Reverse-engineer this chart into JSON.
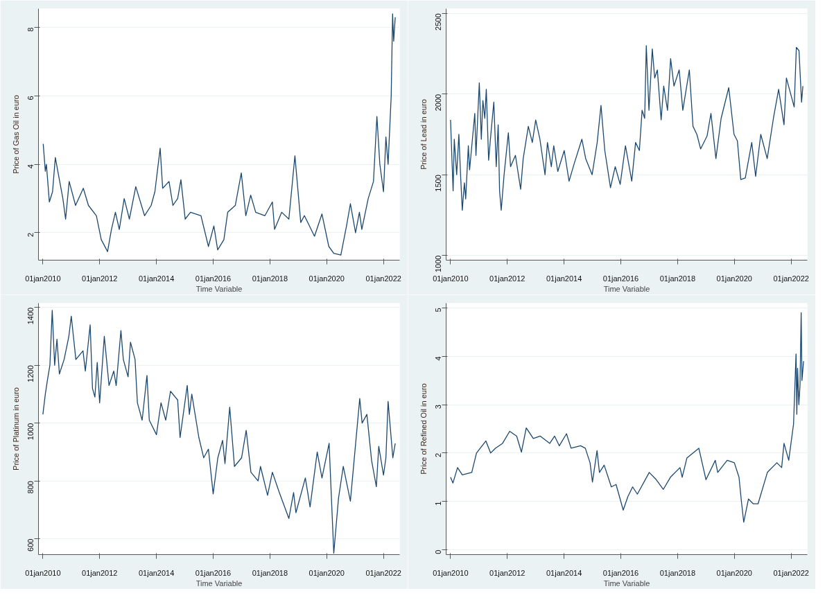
{
  "chart_data": [
    {
      "type": "line",
      "xlabel": "Time Variable",
      "ylabel": "Price of Gas Oil in euro",
      "grid": "y",
      "xlim": [
        "2009-11-05",
        "2022-07-28"
      ],
      "ylim": [
        1.2,
        8.55
      ],
      "yticks": [
        2,
        4,
        6,
        8
      ],
      "xticks": [
        {
          "value": "2010-01-01",
          "label": "01jan2010"
        },
        {
          "value": "2012-01-01",
          "label": "01jan2012"
        },
        {
          "value": "2014-01-01",
          "label": "01jan2014"
        },
        {
          "value": "2016-01-01",
          "label": "01jan2016"
        },
        {
          "value": "2018-01-01",
          "label": "01jan2018"
        },
        {
          "value": "2020-01-01",
          "label": "01jan2020"
        },
        {
          "value": "2022-01-01",
          "label": "01jan2022"
        }
      ],
      "series": [
        {
          "color": "#1a476f",
          "x": [
            "2010-01-05",
            "2010-02-01",
            "2010-02-15",
            "2010-03-25",
            "2010-05-05",
            "2010-06-10",
            "2010-07-28",
            "2010-09-15",
            "2010-10-20",
            "2010-12-05",
            "2011-02-25",
            "2011-06-05",
            "2011-08-10",
            "2011-11-20",
            "2012-01-22",
            "2012-04-12",
            "2012-06-01",
            "2012-07-22",
            "2012-09-10",
            "2012-11-12",
            "2013-01-18",
            "2013-04-10",
            "2013-08-01",
            "2013-10-25",
            "2013-12-12",
            "2014-02-18",
            "2014-03-22",
            "2014-06-12",
            "2014-08-01",
            "2014-10-01",
            "2014-11-12",
            "2015-01-06",
            "2015-03-15",
            "2015-07-28",
            "2015-11-01",
            "2016-01-10",
            "2016-02-28",
            "2016-05-18",
            "2016-07-06",
            "2016-10-12",
            "2016-12-28",
            "2017-02-24",
            "2017-04-28",
            "2017-07-01",
            "2017-10-28",
            "2018-02-01",
            "2018-03-01",
            "2018-06-01",
            "2018-09-01",
            "2018-11-18",
            "2019-02-01",
            "2019-03-20",
            "2019-07-28",
            "2019-11-01",
            "2020-01-28",
            "2020-04-01",
            "2020-07-01",
            "2020-09-12",
            "2020-11-01",
            "2021-01-06",
            "2021-02-25",
            "2021-03-28",
            "2021-06-18",
            "2021-08-25",
            "2021-10-08",
            "2021-11-15",
            "2022-01-01",
            "2022-02-01",
            "2022-03-01",
            "2022-04-10",
            "2022-04-28",
            "2022-05-12",
            "2022-06-01"
          ],
          "values": [
            4.6,
            3.8,
            4.0,
            2.9,
            3.2,
            4.2,
            3.6,
            3.0,
            2.4,
            3.5,
            2.8,
            3.3,
            2.8,
            2.5,
            1.8,
            1.45,
            2.1,
            2.6,
            2.1,
            3.0,
            2.4,
            3.35,
            2.5,
            2.8,
            3.2,
            4.47,
            3.3,
            3.5,
            2.8,
            3.0,
            3.55,
            2.4,
            2.6,
            2.5,
            1.6,
            2.2,
            1.5,
            1.8,
            2.6,
            2.8,
            3.75,
            2.5,
            3.1,
            2.6,
            2.5,
            2.9,
            2.1,
            2.6,
            2.4,
            4.25,
            2.3,
            2.5,
            1.9,
            2.55,
            1.6,
            1.4,
            1.35,
            2.2,
            2.85,
            2.0,
            2.6,
            2.1,
            3.0,
            3.5,
            5.4,
            4.0,
            3.2,
            4.8,
            4.0,
            6.0,
            8.4,
            7.6,
            8.3
          ]
        }
      ]
    },
    {
      "type": "line",
      "xlabel": "Time Variable",
      "ylabel": "Price of Lead in euro",
      "grid": "y",
      "xlim": [
        "2009-11-05",
        "2022-07-28"
      ],
      "ylim": [
        970,
        2530
      ],
      "yticks": [
        1000,
        1500,
        2000,
        2500
      ],
      "xticks": [
        {
          "value": "2010-01-01",
          "label": "01jan2010"
        },
        {
          "value": "2012-01-01",
          "label": "01jan2012"
        },
        {
          "value": "2014-01-01",
          "label": "01jan2014"
        },
        {
          "value": "2016-01-01",
          "label": "01jan2016"
        },
        {
          "value": "2018-01-01",
          "label": "01jan2018"
        },
        {
          "value": "2020-01-01",
          "label": "01jan2020"
        },
        {
          "value": "2022-01-01",
          "label": "01jan2022"
        }
      ],
      "series": [
        {
          "color": "#1a476f",
          "x": [
            "2010-01-01",
            "2010-01-15",
            "2010-02-03",
            "2010-02-18",
            "2010-03-21",
            "2010-04-18",
            "2010-05-10",
            "2010-06-01",
            "2010-06-28",
            "2010-07-15",
            "2010-08-18",
            "2010-09-03",
            "2010-11-09",
            "2010-11-24",
            "2011-01-06",
            "2011-02-01",
            "2011-02-21",
            "2011-03-18",
            "2011-04-06",
            "2011-05-06",
            "2011-06-09",
            "2011-07-12",
            "2011-08-12",
            "2011-09-06",
            "2011-09-24",
            "2011-10-15",
            "2011-11-21",
            "2012-01-15",
            "2012-02-12",
            "2012-04-15",
            "2012-06-21",
            "2012-07-24",
            "2012-09-28",
            "2012-11-18",
            "2013-01-01",
            "2013-02-24",
            "2013-05-01",
            "2013-06-01",
            "2013-07-21",
            "2013-08-21",
            "2013-10-12",
            "2014-01-03",
            "2014-03-06",
            "2014-05-12",
            "2014-08-18",
            "2014-10-06",
            "2014-12-28",
            "2015-03-03",
            "2015-04-21",
            "2015-06-09",
            "2015-08-21",
            "2015-10-21",
            "2015-12-24",
            "2016-03-01",
            "2016-05-21",
            "2016-07-09",
            "2016-08-27",
            "2016-10-01",
            "2016-11-03",
            "2016-11-24",
            "2016-12-28",
            "2017-02-09",
            "2017-03-12",
            "2017-04-15",
            "2017-06-03",
            "2017-07-06",
            "2017-08-24",
            "2017-10-03",
            "2017-11-15",
            "2018-01-21",
            "2018-03-09",
            "2018-06-01",
            "2018-07-18",
            "2018-09-06",
            "2018-10-24",
            "2019-01-15",
            "2019-03-06",
            "2019-05-09",
            "2019-07-15",
            "2019-10-21",
            "2019-12-28",
            "2020-02-09",
            "2020-03-24",
            "2020-05-21",
            "2020-08-12",
            "2020-10-01",
            "2020-12-06",
            "2021-02-27",
            "2021-05-18",
            "2021-07-24",
            "2021-10-01",
            "2021-11-01",
            "2022-02-09",
            "2022-03-09",
            "2022-04-12",
            "2022-05-15",
            "2022-06-01"
          ],
          "values": [
            1840,
            1650,
            1400,
            1720,
            1500,
            1750,
            1500,
            1280,
            1450,
            1350,
            1680,
            1530,
            1880,
            1620,
            2070,
            1720,
            1960,
            1850,
            2030,
            1590,
            1780,
            1950,
            1550,
            1810,
            1400,
            1280,
            1500,
            1760,
            1550,
            1620,
            1410,
            1600,
            1800,
            1700,
            1840,
            1720,
            1500,
            1700,
            1550,
            1680,
            1520,
            1650,
            1460,
            1570,
            1720,
            1600,
            1500,
            1700,
            1930,
            1650,
            1420,
            1550,
            1440,
            1680,
            1460,
            1700,
            1650,
            1900,
            1850,
            2300,
            1900,
            2280,
            2100,
            2150,
            1840,
            2050,
            1900,
            2220,
            2050,
            2150,
            1900,
            2150,
            1800,
            1750,
            1660,
            1740,
            1880,
            1600,
            1850,
            2040,
            1750,
            1710,
            1470,
            1480,
            1700,
            1490,
            1750,
            1600,
            1850,
            2030,
            1810,
            2100,
            1920,
            2290,
            2270,
            1950,
            2050
          ]
        }
      ]
    },
    {
      "type": "line",
      "xlabel": "Time Variable",
      "ylabel": "Price of Platinum in euro",
      "grid": "y",
      "xlim": [
        "2009-11-05",
        "2022-07-28"
      ],
      "ylim": [
        545,
        1415
      ],
      "yticks": [
        600,
        800,
        1000,
        1200,
        1400
      ],
      "xticks": [
        {
          "value": "2010-01-01",
          "label": "01jan2010"
        },
        {
          "value": "2012-01-01",
          "label": "01jan2012"
        },
        {
          "value": "2014-01-01",
          "label": "01jan2014"
        },
        {
          "value": "2016-01-01",
          "label": "01jan2016"
        },
        {
          "value": "2018-01-01",
          "label": "01jan2018"
        },
        {
          "value": "2020-01-01",
          "label": "01jan2020"
        },
        {
          "value": "2022-01-01",
          "label": "01jan2022"
        }
      ],
      "series": [
        {
          "color": "#1a476f",
          "x": [
            "2010-01",
            "2010-02",
            "2010-03",
            "2010-04",
            "2010-05",
            "2010-06",
            "2010-07",
            "2010-08",
            "2010-10",
            "2010-12",
            "2011-01",
            "2011-03",
            "2011-06",
            "2011-07",
            "2011-09",
            "2011-10",
            "2011-11",
            "2011-12",
            "2012-01",
            "2012-03",
            "2012-05",
            "2012-07",
            "2012-08",
            "2012-10",
            "2012-11",
            "2013-01",
            "2013-02",
            "2013-04",
            "2013-05",
            "2013-07",
            "2013-09",
            "2013-10",
            "2014-01",
            "2014-03",
            "2014-05",
            "2014-07",
            "2014-10",
            "2014-11",
            "2015-02",
            "2015-03",
            "2015-04",
            "2015-07",
            "2015-09",
            "2015-11",
            "2016-01",
            "2016-03",
            "2016-05",
            "2016-06",
            "2016-08",
            "2016-10",
            "2017-01",
            "2017-03",
            "2017-05",
            "2017-08",
            "2017-09",
            "2017-12",
            "2018-02",
            "2018-05",
            "2018-09",
            "2018-11",
            "2018-12",
            "2019-04",
            "2019-06",
            "2019-09",
            "2019-11",
            "2020-02",
            "2020-04",
            "2020-06",
            "2020-08",
            "2020-11",
            "2021-03",
            "2021-04",
            "2021-06",
            "2021-08",
            "2021-10",
            "2021-11",
            "2022-01",
            "2022-02",
            "2022-03",
            "2022-05",
            "2022-06"
          ],
          "values": [
            1030,
            1100,
            1150,
            1200,
            1390,
            1200,
            1290,
            1170,
            1220,
            1300,
            1370,
            1220,
            1250,
            1180,
            1340,
            1120,
            1090,
            1210,
            1070,
            1300,
            1130,
            1180,
            1130,
            1320,
            1220,
            1160,
            1280,
            1220,
            1070,
            1010,
            1165,
            1010,
            960,
            1070,
            1010,
            1110,
            1080,
            950,
            1130,
            1030,
            1100,
            950,
            880,
            910,
            755,
            880,
            940,
            860,
            1055,
            850,
            880,
            975,
            830,
            800,
            850,
            750,
            830,
            760,
            670,
            760,
            690,
            810,
            710,
            900,
            810,
            930,
            550,
            740,
            850,
            730,
            1085,
            1000,
            1030,
            870,
            780,
            920,
            820,
            880,
            1075,
            880,
            930
          ]
        }
      ]
    },
    {
      "type": "line",
      "xlabel": "Time Variable",
      "ylabel": "Price of Refined Oil in euro",
      "grid": "y",
      "xlim": [
        "2009-11-05",
        "2022-07-28"
      ],
      "ylim": [
        -0.1,
        5.1
      ],
      "yticks": [
        0,
        1,
        2,
        3,
        4,
        5
      ],
      "xticks": [
        {
          "value": "2010-01-01",
          "label": "01jan2010"
        },
        {
          "value": "2012-01-01",
          "label": "01jan2012"
        },
        {
          "value": "2014-01-01",
          "label": "01jan2014"
        },
        {
          "value": "2016-01-01",
          "label": "01jan2016"
        },
        {
          "value": "2018-01-01",
          "label": "01jan2018"
        },
        {
          "value": "2020-01-01",
          "label": "01jan2020"
        },
        {
          "value": "2022-01-01",
          "label": "01jan2022"
        }
      ],
      "series": [
        {
          "color": "#1a476f",
          "x": [
            "2010-01",
            "2010-02",
            "2010-04",
            "2010-06",
            "2010-10",
            "2010-12",
            "2011-04",
            "2011-06",
            "2011-08",
            "2011-11",
            "2012-02",
            "2012-05",
            "2012-07",
            "2012-09",
            "2012-12",
            "2013-03",
            "2013-07",
            "2013-09",
            "2013-11",
            "2014-02",
            "2014-04",
            "2014-08",
            "2014-10",
            "2014-12",
            "2015-01",
            "2015-03",
            "2015-04",
            "2015-06",
            "2015-09",
            "2015-11",
            "2016-02",
            "2016-04",
            "2016-06",
            "2016-08",
            "2017-01",
            "2017-04",
            "2017-07",
            "2017-10",
            "2018-02",
            "2018-03",
            "2018-05",
            "2018-10",
            "2019-01",
            "2019-05",
            "2019-06",
            "2019-10",
            "2020-01",
            "2020-03",
            "2020-04",
            "2020-05",
            "2020-07",
            "2020-09",
            "2020-11",
            "2021-03",
            "2021-07",
            "2021-09",
            "2021-10",
            "2021-12",
            "2022-02",
            "2022-03-05",
            "2022-03-15",
            "2022-03-25",
            "2022-04-10",
            "2022-04-25",
            "2022-05-10",
            "2022-05-20",
            "2022-06-10"
          ],
          "values": [
            1.5,
            1.38,
            1.7,
            1.55,
            1.6,
            2.0,
            2.25,
            2.0,
            2.1,
            2.2,
            2.45,
            2.35,
            2.02,
            2.52,
            2.3,
            2.35,
            2.2,
            2.35,
            2.15,
            2.4,
            2.1,
            2.15,
            2.1,
            1.8,
            1.4,
            2.05,
            1.6,
            1.75,
            1.3,
            1.35,
            0.82,
            1.1,
            1.3,
            1.15,
            1.6,
            1.45,
            1.25,
            1.5,
            1.7,
            1.5,
            1.9,
            2.1,
            1.45,
            1.85,
            1.6,
            1.85,
            1.8,
            1.5,
            1.0,
            0.57,
            1.05,
            0.95,
            0.95,
            1.6,
            1.8,
            1.7,
            2.2,
            1.85,
            2.6,
            4.05,
            2.8,
            3.75,
            3.0,
            3.4,
            4.9,
            3.5,
            3.9
          ]
        }
      ]
    }
  ]
}
